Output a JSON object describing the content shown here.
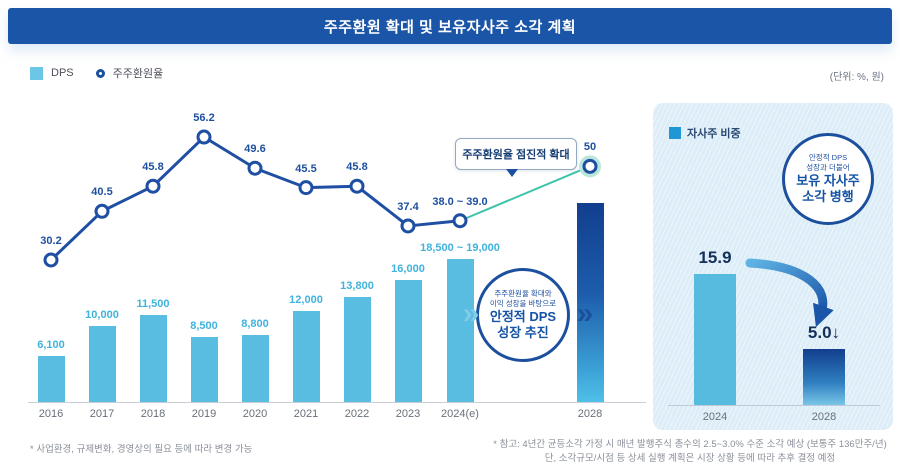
{
  "header": {
    "title": "주주환원 확대 및 보유자사주 소각 계획"
  },
  "legend": {
    "dps_label": "DPS",
    "ratio_label": "주주환원율",
    "unit_label": "(단위: %, 원)"
  },
  "callouts": {
    "line_callout": {
      "text": "주주환원율 점진적 확대"
    },
    "dps_circle": {
      "line1": "주주환원율 확대와",
      "line2": "이익 성장을 바탕으로",
      "line3": "안정적 DPS",
      "line4": "성장 추진"
    },
    "treasury_circle": {
      "line1": "안정적 DPS",
      "line2": "성장과 더불어",
      "line3": "보유 자사주",
      "line4": "소각 병행"
    }
  },
  "chart_data": [
    {
      "type": "bar",
      "name": "dps-bars-with-shareholder-return-ratio-line",
      "title": "주주환원 확대 및 보유자사주 소각 계획",
      "categories": [
        "2016",
        "2017",
        "2018",
        "2019",
        "2020",
        "2021",
        "2022",
        "2023",
        "2024(e)",
        "2028"
      ],
      "series": [
        {
          "name": "DPS",
          "type": "bar",
          "unit": "원",
          "values": [
            6100,
            10000,
            11500,
            8500,
            8800,
            12000,
            13800,
            16000,
            18750,
            null
          ],
          "labels": [
            "6,100",
            "10,000",
            "11,500",
            "8,500",
            "8,800",
            "12,000",
            "13,800",
            "16,000",
            "18,500 ~ 19,000",
            ""
          ]
        },
        {
          "name": "주주환원율",
          "type": "line",
          "unit": "%",
          "values": [
            30.2,
            40.5,
            45.8,
            56.2,
            49.6,
            45.5,
            45.8,
            37.4,
            38.5,
            50
          ],
          "labels": [
            "30.2",
            "40.5",
            "45.8",
            "56.2",
            "49.6",
            "45.5",
            "45.8",
            "37.4",
            "38.0 ~ 39.0",
            "50"
          ]
        }
      ],
      "legend_position": "top-left",
      "grid": false
    },
    {
      "type": "bar",
      "name": "treasury-stock-ratio",
      "legend_label": "자사주 비중",
      "unit": "%",
      "categories": [
        "2024",
        "2028"
      ],
      "values": [
        15.9,
        5.0
      ],
      "labels": [
        "15.9",
        "5.0↓"
      ],
      "grid": false
    }
  ],
  "footnotes": {
    "left": "* 사업환경, 규제변화, 경영상의 필요 등에 따라 변경 가능",
    "right_line1": "* 참고: 4년간 균등소각 가정 시 매년 발행주식 총수의 2.5~3.0% 수준 소각 예상 (보통주 136만주/년)",
    "right_line2": "단, 소각규모/시점 등 상세 실행 계획은 시장 상황 등에 따라 추후 결정 예정"
  },
  "colors": {
    "header_bg": "#1a55a8",
    "bar_light_blue": "#58bde0",
    "bar_label_blue": "#3fb3dc",
    "line_navy": "#1f4fa3",
    "teal_accent": "#3fc3ab",
    "teal_halo": "#b9e7dc",
    "gradient_bar_top": "#123e8e",
    "gradient_bar_bottom": "#4fc0e8",
    "panel_bg": "#dcedf8",
    "treasury_legend_blue": "#1e97d4",
    "dark_value_navy": "#14305a"
  }
}
